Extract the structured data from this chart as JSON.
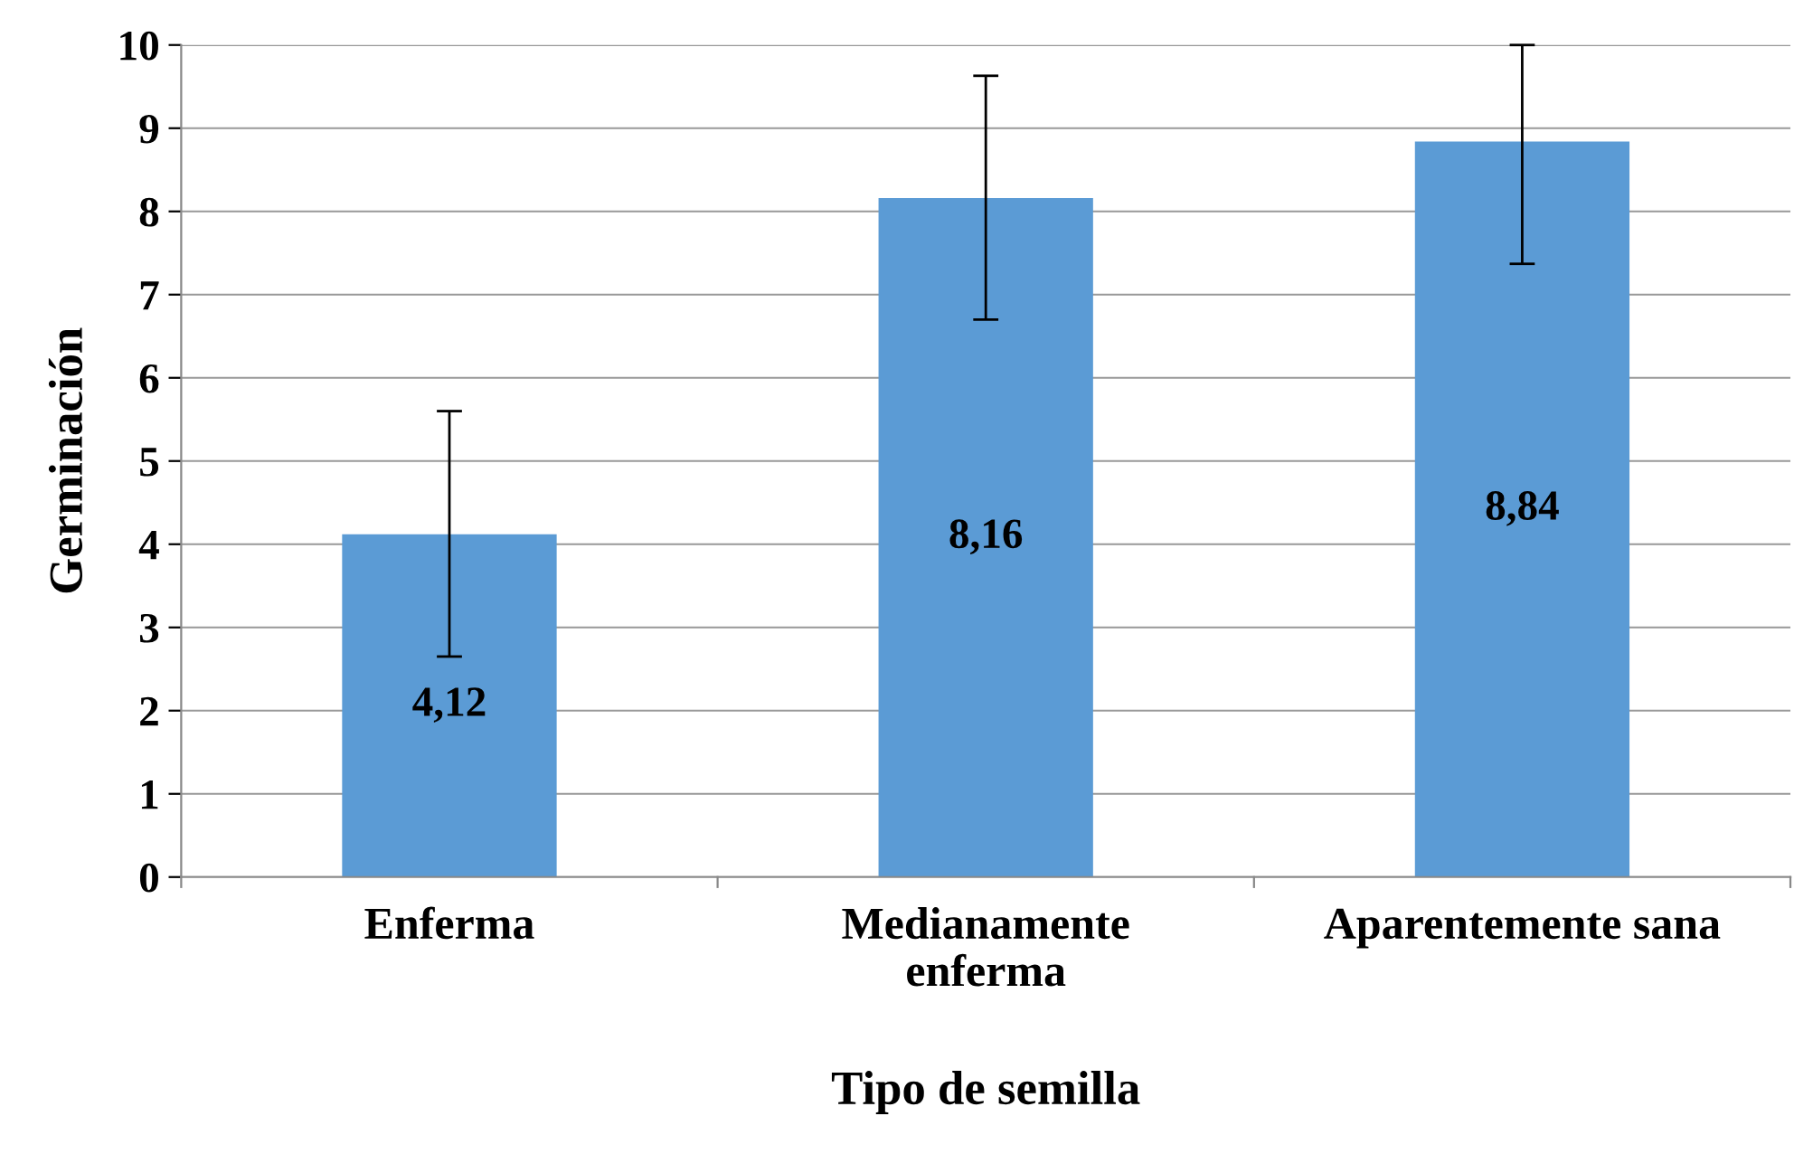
{
  "chart_data": {
    "type": "bar",
    "xlabel": "Tipo de semilla",
    "ylabel": "Germinación",
    "categories": [
      "Enferma",
      "Medianamente\nenferma",
      "Aparentemente sana"
    ],
    "values": [
      4.12,
      8.16,
      8.84
    ],
    "value_labels": [
      "4,12",
      "8,16",
      "8,84"
    ],
    "errors": [
      [
        2.65,
        5.6
      ],
      [
        6.7,
        9.63
      ],
      [
        7.37,
        10
      ]
    ],
    "color": "#5b9bd5",
    "ylim": [
      0,
      10
    ],
    "yticks": [
      0,
      1,
      2,
      3,
      4,
      5,
      6,
      7,
      8,
      9,
      10
    ],
    "grid": "y",
    "legend": false
  }
}
